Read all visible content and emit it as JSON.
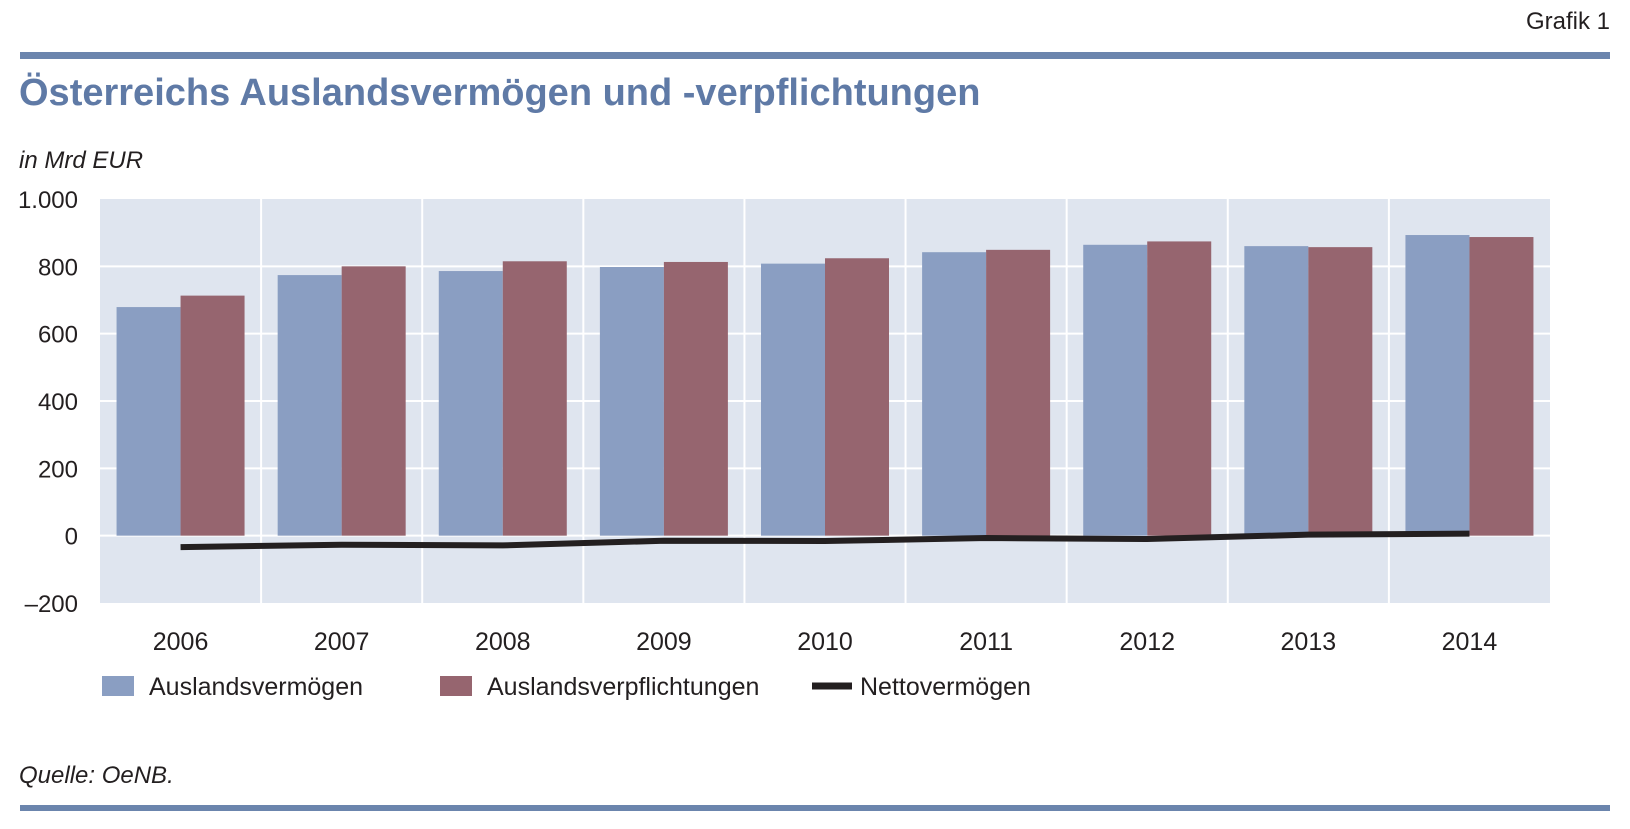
{
  "header": {
    "figure_label": "Grafik 1",
    "title": "Österreichs Auslandsvermögen und -verpflichtungen",
    "unit": "in Mrd EUR"
  },
  "footer": {
    "source": "Quelle: OeNB."
  },
  "colors": {
    "accent_rule": "#6b85ad",
    "title": "#5f7aa6",
    "plot_background": "#dfe5ef",
    "assets": "#8a9ec2",
    "liabilities": "#96656f",
    "net": "#231f20"
  },
  "chart_data": {
    "type": "bar",
    "categories": [
      "2006",
      "2007",
      "2008",
      "2009",
      "2010",
      "2011",
      "2012",
      "2013",
      "2014"
    ],
    "series": [
      {
        "name": "Auslandsvermögen",
        "type": "bar",
        "values": [
          679,
          774,
          786,
          798,
          808,
          842,
          864,
          860,
          893
        ]
      },
      {
        "name": "Auslandsverpflichtungen",
        "type": "bar",
        "values": [
          713,
          800,
          815,
          813,
          824,
          849,
          874,
          857,
          887
        ]
      },
      {
        "name": "Nettovermögen",
        "type": "line",
        "values": [
          -34,
          -27,
          -29,
          -15,
          -16,
          -7,
          -10,
          3,
          6
        ]
      }
    ],
    "ylim": [
      -200,
      1000
    ],
    "yticks": [
      -200,
      0,
      200,
      400,
      600,
      800,
      1000
    ],
    "ytick_labels": [
      "–200",
      "0",
      "200",
      "400",
      "600",
      "800",
      "1.000"
    ],
    "grid": true,
    "legend_position": "bottom"
  }
}
